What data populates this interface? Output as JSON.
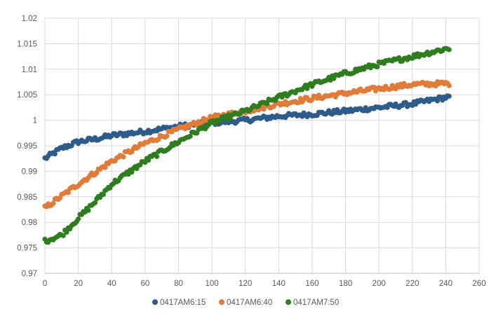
{
  "chart_data": {
    "type": "scatter",
    "title": "",
    "xlabel": "",
    "ylabel": "",
    "xlim": [
      0,
      260
    ],
    "ylim": [
      0.97,
      1.02
    ],
    "x_ticks": [
      "0",
      "20",
      "40",
      "60",
      "80",
      "100",
      "120",
      "140",
      "160",
      "180",
      "200",
      "220",
      "240",
      "260"
    ],
    "y_ticks": [
      "0.97",
      "0.975",
      "0.98",
      "0.985",
      "0.99",
      "0.995",
      "1",
      "1.005",
      "1.01",
      "1.015",
      "1.02"
    ],
    "grid": true,
    "legend_position": "bottom",
    "series": [
      {
        "name": "0417AM6:15",
        "color": "#2E5C8A",
        "anchors": [
          [
            0,
            0.9925
          ],
          [
            10,
            0.9945
          ],
          [
            20,
            0.9958
          ],
          [
            30,
            0.9963
          ],
          [
            40,
            0.997
          ],
          [
            60,
            0.9978
          ],
          [
            80,
            0.9988
          ],
          [
            100,
            0.9995
          ],
          [
            120,
            1.0
          ],
          [
            140,
            1.0008
          ],
          [
            160,
            1.0012
          ],
          [
            180,
            1.0018
          ],
          [
            200,
            1.0025
          ],
          [
            220,
            1.0032
          ],
          [
            240,
            1.0045
          ]
        ],
        "x_range": [
          0,
          242
        ]
      },
      {
        "name": "0417AM6:40",
        "color": "#E07B39",
        "anchors": [
          [
            0,
            0.9828
          ],
          [
            20,
            0.9875
          ],
          [
            40,
            0.992
          ],
          [
            60,
            0.9955
          ],
          [
            80,
            0.9982
          ],
          [
            100,
            1.0005
          ],
          [
            120,
            1.0018
          ],
          [
            140,
            1.0032
          ],
          [
            160,
            1.0043
          ],
          [
            180,
            1.0053
          ],
          [
            200,
            1.0062
          ],
          [
            220,
            1.007
          ],
          [
            240,
            1.0072
          ]
        ],
        "x_range": [
          0,
          242
        ]
      },
      {
        "name": "0417AM7:50",
        "color": "#2E7D1E",
        "anchors": [
          [
            0,
            0.9763
          ],
          [
            10,
            0.9775
          ],
          [
            20,
            0.9808
          ],
          [
            30,
            0.984
          ],
          [
            40,
            0.9875
          ],
          [
            60,
            0.992
          ],
          [
            80,
            0.9958
          ],
          [
            100,
            0.9995
          ],
          [
            120,
            1.0018
          ],
          [
            140,
            1.0045
          ],
          [
            160,
            1.007
          ],
          [
            180,
            1.0092
          ],
          [
            200,
            1.011
          ],
          [
            220,
            1.0125
          ],
          [
            240,
            1.014
          ]
        ],
        "x_range": [
          0,
          242
        ]
      }
    ]
  }
}
